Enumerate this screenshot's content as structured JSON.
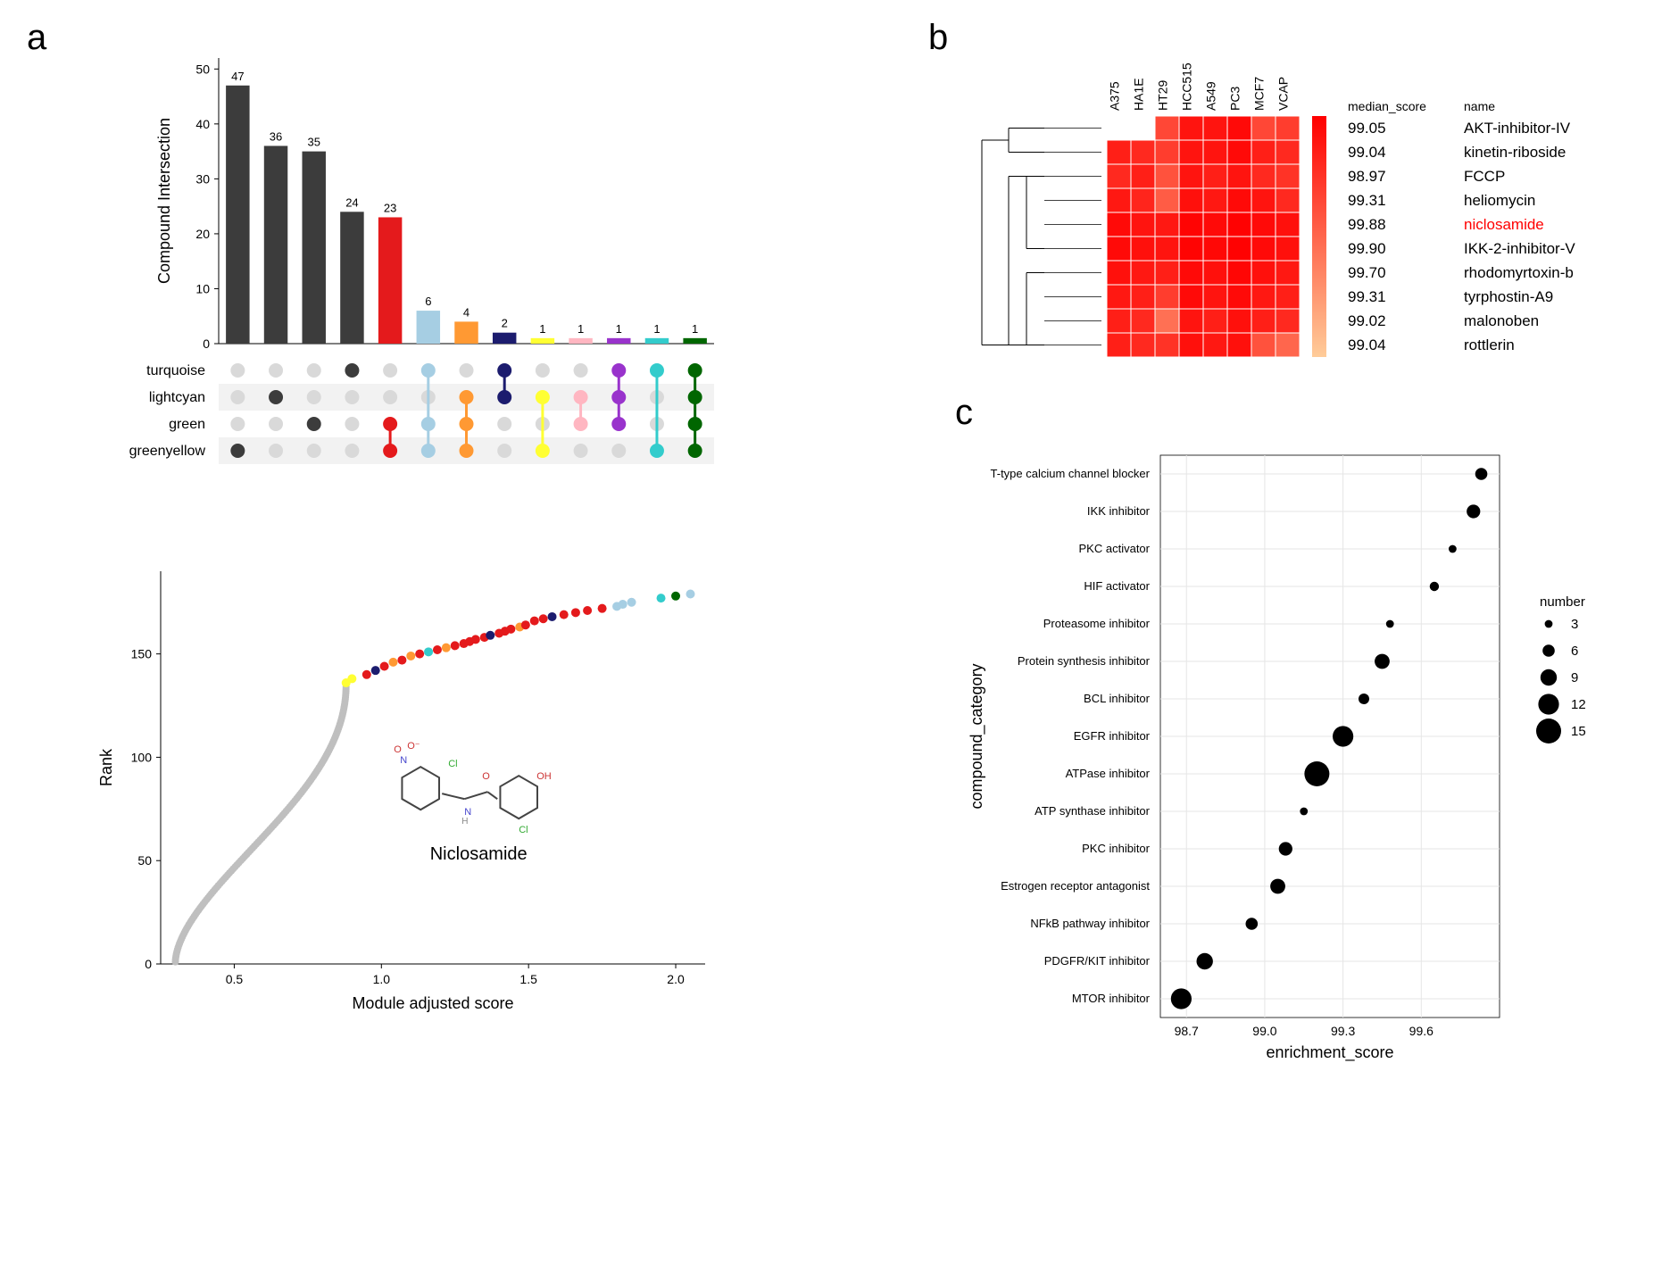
{
  "labels": {
    "a": "a",
    "b": "b",
    "c": "c"
  },
  "panelA": {
    "bar": {
      "ylabel": "Compound Intersection",
      "ylim": [
        0,
        52
      ],
      "yticks": [
        0,
        10,
        20,
        30,
        40,
        50
      ],
      "values": [
        47,
        36,
        35,
        24,
        23,
        6,
        4,
        2,
        1,
        1,
        1,
        1,
        1
      ],
      "colors": [
        "#3c3c3c",
        "#3c3c3c",
        "#3c3c3c",
        "#3c3c3c",
        "#e41a1c",
        "#a6cee3",
        "#ff9933",
        "#1c1c6e",
        "#ffff33",
        "#ffb6c1",
        "#9933cc",
        "#33cccc",
        "#006600"
      ]
    },
    "sets": {
      "labels": [
        "turquoise",
        "lightcyan",
        "green",
        "greenyellow"
      ],
      "dotEmpty": "#d9d9d9",
      "altRow": "#f2f2f2",
      "matrix": [
        [
          0,
          0,
          0,
          1
        ],
        [
          0,
          1,
          0,
          0
        ],
        [
          0,
          0,
          1,
          0
        ],
        [
          1,
          0,
          0,
          0
        ],
        [
          0,
          0,
          1,
          1
        ],
        [
          1,
          0,
          1,
          1
        ],
        [
          0,
          1,
          1,
          1
        ],
        [
          1,
          1,
          0,
          0
        ],
        [
          0,
          1,
          0,
          1
        ],
        [
          0,
          1,
          1,
          0
        ],
        [
          1,
          1,
          1,
          0
        ],
        [
          1,
          0,
          0,
          1
        ],
        [
          1,
          1,
          1,
          1
        ]
      ]
    },
    "scatter": {
      "xlabel": "Module adjusted score",
      "ylabel": "Rank",
      "xlim": [
        0.25,
        2.1
      ],
      "xticks": [
        0.5,
        1.0,
        1.5,
        2.0
      ],
      "ylim": [
        0,
        190
      ],
      "yticks": [
        0,
        50,
        100,
        150
      ],
      "gray_color": "#bfbfbf",
      "colored": [
        {
          "x": 0.88,
          "y": 136,
          "c": "#ffff33"
        },
        {
          "x": 0.9,
          "y": 138,
          "c": "#ffff33"
        },
        {
          "x": 0.95,
          "y": 140,
          "c": "#e41a1c"
        },
        {
          "x": 0.98,
          "y": 142,
          "c": "#1c1c6e"
        },
        {
          "x": 1.01,
          "y": 144,
          "c": "#e41a1c"
        },
        {
          "x": 1.04,
          "y": 146,
          "c": "#ff9933"
        },
        {
          "x": 1.07,
          "y": 147,
          "c": "#e41a1c"
        },
        {
          "x": 1.1,
          "y": 149,
          "c": "#ff9933"
        },
        {
          "x": 1.13,
          "y": 150,
          "c": "#e41a1c"
        },
        {
          "x": 1.16,
          "y": 151,
          "c": "#33cccc"
        },
        {
          "x": 1.19,
          "y": 152,
          "c": "#e41a1c"
        },
        {
          "x": 1.22,
          "y": 153,
          "c": "#ff9933"
        },
        {
          "x": 1.25,
          "y": 154,
          "c": "#e41a1c"
        },
        {
          "x": 1.28,
          "y": 155,
          "c": "#e41a1c"
        },
        {
          "x": 1.3,
          "y": 156,
          "c": "#e41a1c"
        },
        {
          "x": 1.32,
          "y": 157,
          "c": "#e41a1c"
        },
        {
          "x": 1.35,
          "y": 158,
          "c": "#e41a1c"
        },
        {
          "x": 1.37,
          "y": 159,
          "c": "#1c1c6e"
        },
        {
          "x": 1.4,
          "y": 160,
          "c": "#e41a1c"
        },
        {
          "x": 1.42,
          "y": 161,
          "c": "#e41a1c"
        },
        {
          "x": 1.44,
          "y": 162,
          "c": "#e41a1c"
        },
        {
          "x": 1.47,
          "y": 163,
          "c": "#ff9933"
        },
        {
          "x": 1.49,
          "y": 164,
          "c": "#e41a1c"
        },
        {
          "x": 1.52,
          "y": 166,
          "c": "#e41a1c"
        },
        {
          "x": 1.55,
          "y": 167,
          "c": "#e41a1c"
        },
        {
          "x": 1.58,
          "y": 168,
          "c": "#1c1c6e"
        },
        {
          "x": 1.62,
          "y": 169,
          "c": "#e41a1c"
        },
        {
          "x": 1.66,
          "y": 170,
          "c": "#e41a1c"
        },
        {
          "x": 1.7,
          "y": 171,
          "c": "#e41a1c"
        },
        {
          "x": 1.75,
          "y": 172,
          "c": "#e41a1c"
        },
        {
          "x": 1.8,
          "y": 173,
          "c": "#a6cee3"
        },
        {
          "x": 1.82,
          "y": 174,
          "c": "#a6cee3"
        },
        {
          "x": 1.85,
          "y": 175,
          "c": "#a6cee3"
        },
        {
          "x": 1.95,
          "y": 177,
          "c": "#33cccc"
        },
        {
          "x": 2.0,
          "y": 178,
          "c": "#006600"
        },
        {
          "x": 2.05,
          "y": 179,
          "c": "#a6cee3"
        }
      ],
      "annotation": "Niclosamide"
    }
  },
  "panelB": {
    "columns": [
      "A375",
      "HA1E",
      "HT29",
      "HCC515",
      "A549",
      "PC3",
      "MCF7",
      "VCAP"
    ],
    "header_score": "median_score",
    "header_name": "name",
    "colormap_min": "#ffcc99",
    "colormap_max": "#ff0000",
    "rows": [
      {
        "name": "AKT-inhibitor-IV",
        "score": "99.05",
        "vals": [
          0.0,
          0.0,
          0.65,
          0.9,
          0.9,
          0.95,
          0.65,
          0.7
        ],
        "hl": false
      },
      {
        "name": "kinetin-riboside",
        "score": "99.04",
        "vals": [
          0.85,
          0.8,
          0.7,
          0.9,
          0.9,
          0.95,
          0.85,
          0.8
        ],
        "hl": false
      },
      {
        "name": "FCCP",
        "score": "98.97",
        "vals": [
          0.8,
          0.85,
          0.6,
          0.9,
          0.85,
          0.9,
          0.8,
          0.75
        ],
        "hl": false
      },
      {
        "name": "heliomycin",
        "score": "99.31",
        "vals": [
          0.88,
          0.82,
          0.55,
          0.92,
          0.88,
          0.95,
          0.9,
          0.8
        ],
        "hl": false
      },
      {
        "name": "niclosamide",
        "score": "99.88",
        "vals": [
          0.95,
          0.9,
          0.88,
          0.98,
          0.95,
          0.99,
          0.95,
          0.92
        ],
        "hl": true
      },
      {
        "name": "IKK-2-inhibitor-V",
        "score": "99.90",
        "vals": [
          0.95,
          0.92,
          0.9,
          0.98,
          0.96,
          0.99,
          0.95,
          0.92
        ],
        "hl": false
      },
      {
        "name": "rhodomyrtoxin-b",
        "score": "99.70",
        "vals": [
          0.92,
          0.88,
          0.85,
          0.95,
          0.92,
          0.97,
          0.92,
          0.88
        ],
        "hl": false
      },
      {
        "name": "tyrphostin-A9",
        "score": "99.31",
        "vals": [
          0.88,
          0.85,
          0.7,
          0.95,
          0.9,
          0.95,
          0.88,
          0.85
        ],
        "hl": false
      },
      {
        "name": "malonoben",
        "score": "99.02",
        "vals": [
          0.85,
          0.8,
          0.45,
          0.9,
          0.85,
          0.92,
          0.85,
          0.8
        ],
        "hl": false
      },
      {
        "name": "rottlerin",
        "score": "99.04",
        "vals": [
          0.85,
          0.8,
          0.75,
          0.92,
          0.88,
          0.92,
          0.6,
          0.5
        ],
        "hl": false
      }
    ],
    "hl_color": "#ff0000"
  },
  "panelC": {
    "xlabel": "enrichment_score",
    "ylabel": "compound_category",
    "xlim": [
      98.6,
      99.9
    ],
    "xticks": [
      98.7,
      99.0,
      99.3,
      99.6
    ],
    "grid_color": "#e6e6e6",
    "legend_title": "number",
    "legend_sizes": [
      3,
      6,
      9,
      12,
      15
    ],
    "points": [
      {
        "cat": "T-type calcium channel blocker",
        "x": 99.83,
        "n": 6
      },
      {
        "cat": "IKK inhibitor",
        "x": 99.8,
        "n": 7
      },
      {
        "cat": "PKC activator",
        "x": 99.72,
        "n": 3
      },
      {
        "cat": "HIF activator",
        "x": 99.65,
        "n": 4
      },
      {
        "cat": "Proteasome inhibitor",
        "x": 99.48,
        "n": 3
      },
      {
        "cat": "Protein synthesis inhibitor",
        "x": 99.45,
        "n": 8
      },
      {
        "cat": "BCL inhibitor",
        "x": 99.38,
        "n": 5
      },
      {
        "cat": "EGFR inhibitor",
        "x": 99.3,
        "n": 12
      },
      {
        "cat": "ATPase inhibitor",
        "x": 99.2,
        "n": 15
      },
      {
        "cat": "ATP synthase inhibitor",
        "x": 99.15,
        "n": 3
      },
      {
        "cat": "PKC inhibitor",
        "x": 99.08,
        "n": 7
      },
      {
        "cat": "Estrogen receptor antagonist",
        "x": 99.05,
        "n": 8
      },
      {
        "cat": "NFkB pathway inhibitor",
        "x": 98.95,
        "n": 6
      },
      {
        "cat": "PDGFR/KIT inhibitor",
        "x": 98.77,
        "n": 9
      },
      {
        "cat": "MTOR inhibitor",
        "x": 98.68,
        "n": 12
      }
    ]
  }
}
